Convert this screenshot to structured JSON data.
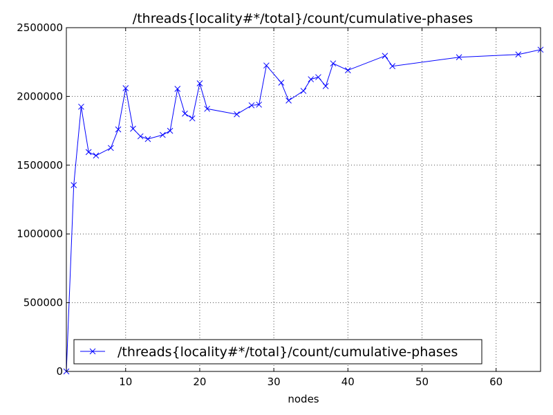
{
  "chart_data": {
    "type": "line",
    "title": "/threads{locality#*/total}/count/cumulative-phases",
    "xlabel": "nodes",
    "ylabel": "",
    "xlim": [
      2,
      66
    ],
    "ylim": [
      0,
      2500000
    ],
    "xticks": [
      10,
      20,
      30,
      40,
      50,
      60
    ],
    "yticks": [
      0,
      500000,
      1000000,
      1500000,
      2000000,
      2500000
    ],
    "grid": true,
    "legend_position": "lower-center",
    "series": [
      {
        "name": "/threads{locality#*/total}/count/cumulative-phases",
        "color": "#0000ff",
        "marker": "x",
        "x": [
          2,
          3,
          4,
          5,
          6,
          8,
          9,
          10,
          11,
          12,
          13,
          15,
          16,
          17,
          18,
          19,
          20,
          21,
          25,
          27,
          28,
          29,
          31,
          32,
          34,
          35,
          36,
          37,
          38,
          40,
          45,
          46,
          55,
          63,
          66
        ],
        "y": [
          0,
          1355000,
          1925000,
          1595000,
          1570000,
          1625000,
          1760000,
          2060000,
          1765000,
          1710000,
          1690000,
          1720000,
          1750000,
          2055000,
          1875000,
          1840000,
          2095000,
          1910000,
          1870000,
          1935000,
          1940000,
          2225000,
          2100000,
          1970000,
          2040000,
          2125000,
          2140000,
          2075000,
          2240000,
          2190000,
          2295000,
          2220000,
          2285000,
          2305000,
          2340000
        ]
      }
    ]
  }
}
